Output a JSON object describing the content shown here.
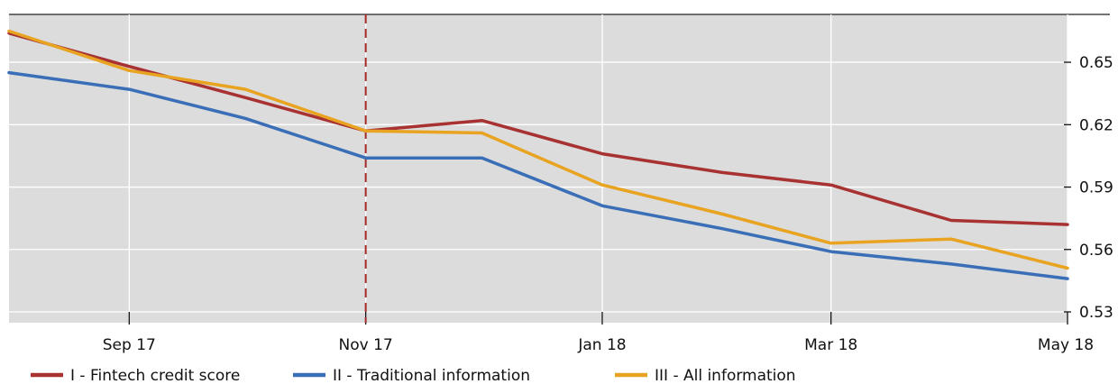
{
  "chart_data": {
    "type": "line",
    "title": "",
    "xlabel": "",
    "ylabel": "",
    "x": [
      "2017-08-01",
      "2017-09-01",
      "2017-10-01",
      "2017-11-01",
      "2017-12-01",
      "2018-01-01",
      "2018-02-01",
      "2018-03-01",
      "2018-04-01",
      "2018-05-01"
    ],
    "x_ticks": [
      {
        "date": "2017-09-01",
        "label": "Sep 17"
      },
      {
        "date": "2017-11-01",
        "label": "Nov 17"
      },
      {
        "date": "2018-01-01",
        "label": "Jan 18"
      },
      {
        "date": "2018-03-01",
        "label": "Mar 18"
      },
      {
        "date": "2018-05-01",
        "label": "May 18"
      }
    ],
    "y_ticks": [
      0.53,
      0.56,
      0.59,
      0.62,
      0.65
    ],
    "y_tick_labels": [
      "0.53",
      "0.56",
      "0.59",
      "0.62",
      "0.65"
    ],
    "xlim": [
      "2017-08-01",
      "2018-05-01"
    ],
    "ylim": [
      0.53,
      0.673
    ],
    "grid": true,
    "y_axis_side": "right",
    "legend_position": "bottom",
    "vertical_marker": {
      "date": "2017-11-01",
      "style": "dashed",
      "color": "#a52a2a"
    },
    "series": [
      {
        "name": "I - Fintech credit score",
        "color": "#a83232",
        "values": [
          0.664,
          0.648,
          0.633,
          0.617,
          0.622,
          0.606,
          0.597,
          0.591,
          0.574,
          0.572
        ]
      },
      {
        "name": "II - Traditional information",
        "color": "#3a6fb7",
        "values": [
          0.645,
          0.637,
          0.623,
          0.604,
          0.604,
          0.581,
          0.57,
          0.559,
          0.553,
          0.546
        ]
      },
      {
        "name": "III - All information",
        "color": "#e8a321",
        "values": [
          0.665,
          0.646,
          0.637,
          0.617,
          0.616,
          0.591,
          0.577,
          0.563,
          0.565,
          0.551
        ]
      }
    ]
  }
}
